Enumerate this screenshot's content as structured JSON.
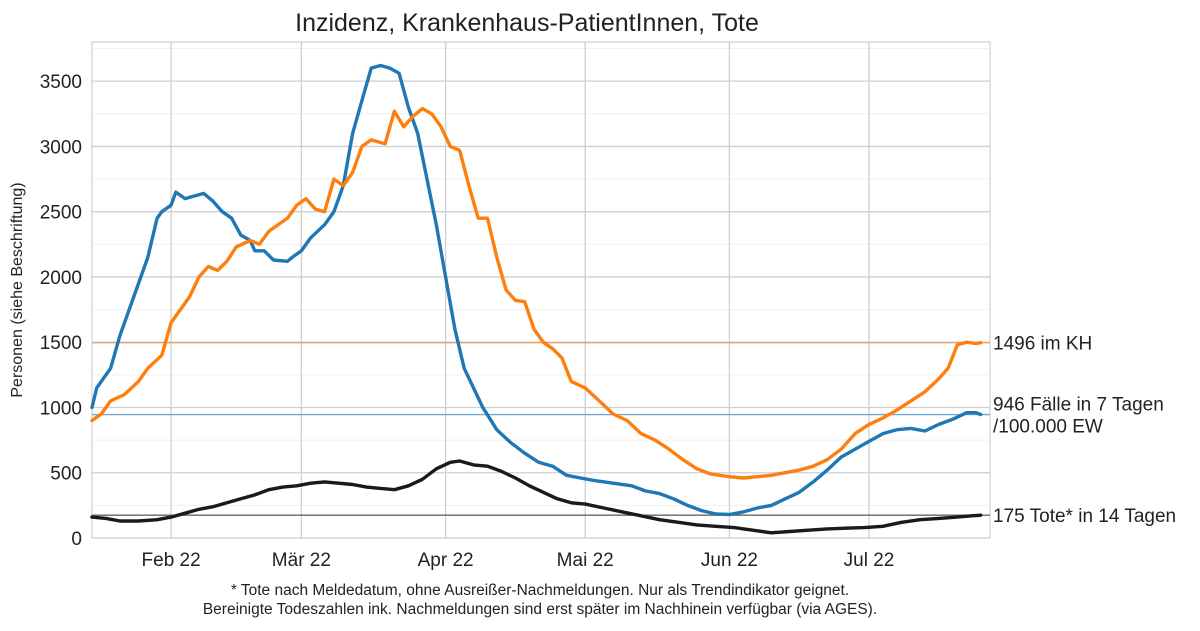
{
  "chart_data": {
    "type": "line",
    "title": "Inzidenz, Krankenhaus-PatientInnen, Tote",
    "ylabel": "Personen (siehe Beschriftung)",
    "xlabel": "",
    "ylim": [
      0,
      3800
    ],
    "xlim": [
      "2022-01-15",
      "2022-07-27"
    ],
    "y_ticks": [
      0,
      500,
      1000,
      1500,
      2000,
      2500,
      3000,
      3500
    ],
    "x_ticks": [
      {
        "date": "2022-02-01",
        "label": "Feb 22"
      },
      {
        "date": "2022-03-01",
        "label": "Mär 22"
      },
      {
        "date": "2022-04-01",
        "label": "Apr 22"
      },
      {
        "date": "2022-05-01",
        "label": "Mai 22"
      },
      {
        "date": "2022-06-01",
        "label": "Jun 22"
      },
      {
        "date": "2022-07-01",
        "label": "Jul 22"
      }
    ],
    "grid": true,
    "reference_lines": [
      {
        "value": 1496,
        "color": "#f0a060",
        "label": "1496 im KH"
      },
      {
        "value": 946,
        "color": "#6fa8d6",
        "label": "946 Fälle in 7 Tagen\n/100.000 EW"
      },
      {
        "value": 175,
        "color": "#666666",
        "label": "175 Tote* in 14 Tagen"
      }
    ],
    "series": [
      {
        "color": "#1f77b4",
        "points": [
          [
            "2022-01-15",
            1000
          ],
          [
            "2022-01-16",
            1150
          ],
          [
            "2022-01-18",
            1250
          ],
          [
            "2022-01-19",
            1300
          ],
          [
            "2022-01-21",
            1550
          ],
          [
            "2022-01-23",
            1750
          ],
          [
            "2022-01-25",
            1950
          ],
          [
            "2022-01-27",
            2150
          ],
          [
            "2022-01-29",
            2450
          ],
          [
            "2022-01-30",
            2500
          ],
          [
            "2022-02-01",
            2550
          ],
          [
            "2022-02-02",
            2650
          ],
          [
            "2022-02-04",
            2600
          ],
          [
            "2022-02-06",
            2620
          ],
          [
            "2022-02-08",
            2640
          ],
          [
            "2022-02-10",
            2580
          ],
          [
            "2022-02-12",
            2500
          ],
          [
            "2022-02-14",
            2450
          ],
          [
            "2022-02-16",
            2320
          ],
          [
            "2022-02-18",
            2280
          ],
          [
            "2022-02-19",
            2200
          ],
          [
            "2022-02-21",
            2200
          ],
          [
            "2022-02-23",
            2130
          ],
          [
            "2022-02-26",
            2120
          ],
          [
            "2022-02-27",
            2150
          ],
          [
            "2022-03-01",
            2200
          ],
          [
            "2022-03-03",
            2300
          ],
          [
            "2022-03-06",
            2400
          ],
          [
            "2022-03-08",
            2500
          ],
          [
            "2022-03-10",
            2700
          ],
          [
            "2022-03-12",
            3100
          ],
          [
            "2022-03-14",
            3350
          ],
          [
            "2022-03-16",
            3600
          ],
          [
            "2022-03-18",
            3620
          ],
          [
            "2022-03-20",
            3600
          ],
          [
            "2022-03-22",
            3560
          ],
          [
            "2022-03-24",
            3300
          ],
          [
            "2022-03-26",
            3100
          ],
          [
            "2022-03-28",
            2750
          ],
          [
            "2022-03-30",
            2400
          ],
          [
            "2022-04-01",
            2000
          ],
          [
            "2022-04-03",
            1600
          ],
          [
            "2022-04-05",
            1300
          ],
          [
            "2022-04-07",
            1150
          ],
          [
            "2022-04-09",
            1000
          ],
          [
            "2022-04-12",
            830
          ],
          [
            "2022-04-15",
            730
          ],
          [
            "2022-04-18",
            650
          ],
          [
            "2022-04-21",
            580
          ],
          [
            "2022-04-24",
            550
          ],
          [
            "2022-04-27",
            480
          ],
          [
            "2022-04-30",
            460
          ],
          [
            "2022-05-03",
            440
          ],
          [
            "2022-05-07",
            420
          ],
          [
            "2022-05-11",
            400
          ],
          [
            "2022-05-14",
            360
          ],
          [
            "2022-05-17",
            340
          ],
          [
            "2022-05-20",
            300
          ],
          [
            "2022-05-23",
            250
          ],
          [
            "2022-05-26",
            210
          ],
          [
            "2022-05-29",
            185
          ],
          [
            "2022-06-01",
            180
          ],
          [
            "2022-06-04",
            200
          ],
          [
            "2022-06-07",
            230
          ],
          [
            "2022-06-10",
            250
          ],
          [
            "2022-06-13",
            300
          ],
          [
            "2022-06-16",
            350
          ],
          [
            "2022-06-19",
            430
          ],
          [
            "2022-06-22",
            520
          ],
          [
            "2022-06-25",
            620
          ],
          [
            "2022-06-28",
            680
          ],
          [
            "2022-07-01",
            740
          ],
          [
            "2022-07-04",
            800
          ],
          [
            "2022-07-07",
            830
          ],
          [
            "2022-07-10",
            840
          ],
          [
            "2022-07-13",
            820
          ],
          [
            "2022-07-16",
            870
          ],
          [
            "2022-07-19",
            910
          ],
          [
            "2022-07-22",
            960
          ],
          [
            "2022-07-24",
            960
          ],
          [
            "2022-07-25",
            946
          ]
        ]
      },
      {
        "color": "#ff7f0e",
        "points": [
          [
            "2022-01-15",
            900
          ],
          [
            "2022-01-17",
            950
          ],
          [
            "2022-01-19",
            1050
          ],
          [
            "2022-01-22",
            1100
          ],
          [
            "2022-01-25",
            1200
          ],
          [
            "2022-01-27",
            1300
          ],
          [
            "2022-01-30",
            1400
          ],
          [
            "2022-02-01",
            1650
          ],
          [
            "2022-02-03",
            1750
          ],
          [
            "2022-02-05",
            1850
          ],
          [
            "2022-02-07",
            2000
          ],
          [
            "2022-02-09",
            2080
          ],
          [
            "2022-02-11",
            2050
          ],
          [
            "2022-02-13",
            2120
          ],
          [
            "2022-02-15",
            2230
          ],
          [
            "2022-02-18",
            2280
          ],
          [
            "2022-02-20",
            2250
          ],
          [
            "2022-02-22",
            2350
          ],
          [
            "2022-02-24",
            2400
          ],
          [
            "2022-02-26",
            2450
          ],
          [
            "2022-02-28",
            2550
          ],
          [
            "2022-03-02",
            2600
          ],
          [
            "2022-03-04",
            2520
          ],
          [
            "2022-03-06",
            2500
          ],
          [
            "2022-03-08",
            2750
          ],
          [
            "2022-03-10",
            2700
          ],
          [
            "2022-03-12",
            2800
          ],
          [
            "2022-03-14",
            3000
          ],
          [
            "2022-03-16",
            3050
          ],
          [
            "2022-03-19",
            3020
          ],
          [
            "2022-03-21",
            3270
          ],
          [
            "2022-03-23",
            3150
          ],
          [
            "2022-03-25",
            3230
          ],
          [
            "2022-03-27",
            3290
          ],
          [
            "2022-03-29",
            3250
          ],
          [
            "2022-03-31",
            3150
          ],
          [
            "2022-04-02",
            3000
          ],
          [
            "2022-04-04",
            2970
          ],
          [
            "2022-04-06",
            2700
          ],
          [
            "2022-04-08",
            2450
          ],
          [
            "2022-04-10",
            2450
          ],
          [
            "2022-04-12",
            2150
          ],
          [
            "2022-04-14",
            1900
          ],
          [
            "2022-04-16",
            1820
          ],
          [
            "2022-04-18",
            1810
          ],
          [
            "2022-04-20",
            1600
          ],
          [
            "2022-04-22",
            1500
          ],
          [
            "2022-04-24",
            1450
          ],
          [
            "2022-04-26",
            1380
          ],
          [
            "2022-04-28",
            1200
          ],
          [
            "2022-05-01",
            1150
          ],
          [
            "2022-05-04",
            1050
          ],
          [
            "2022-05-07",
            950
          ],
          [
            "2022-05-10",
            900
          ],
          [
            "2022-05-13",
            800
          ],
          [
            "2022-05-16",
            750
          ],
          [
            "2022-05-19",
            680
          ],
          [
            "2022-05-22",
            600
          ],
          [
            "2022-05-25",
            530
          ],
          [
            "2022-05-28",
            490
          ],
          [
            "2022-06-01",
            470
          ],
          [
            "2022-06-04",
            460
          ],
          [
            "2022-06-07",
            470
          ],
          [
            "2022-06-10",
            480
          ],
          [
            "2022-06-13",
            500
          ],
          [
            "2022-06-16",
            520
          ],
          [
            "2022-06-19",
            550
          ],
          [
            "2022-06-22",
            600
          ],
          [
            "2022-06-25",
            680
          ],
          [
            "2022-06-28",
            800
          ],
          [
            "2022-07-01",
            870
          ],
          [
            "2022-07-04",
            920
          ],
          [
            "2022-07-07",
            980
          ],
          [
            "2022-07-10",
            1050
          ],
          [
            "2022-07-13",
            1120
          ],
          [
            "2022-07-16",
            1220
          ],
          [
            "2022-07-18",
            1300
          ],
          [
            "2022-07-20",
            1480
          ],
          [
            "2022-07-22",
            1500
          ],
          [
            "2022-07-24",
            1490
          ],
          [
            "2022-07-25",
            1496
          ]
        ]
      },
      {
        "color": "#1a1a1a",
        "points": [
          [
            "2022-01-15",
            160
          ],
          [
            "2022-01-18",
            150
          ],
          [
            "2022-01-21",
            130
          ],
          [
            "2022-01-25",
            130
          ],
          [
            "2022-01-29",
            140
          ],
          [
            "2022-02-01",
            160
          ],
          [
            "2022-02-04",
            190
          ],
          [
            "2022-02-07",
            220
          ],
          [
            "2022-02-10",
            240
          ],
          [
            "2022-02-13",
            270
          ],
          [
            "2022-02-16",
            300
          ],
          [
            "2022-02-19",
            330
          ],
          [
            "2022-02-22",
            370
          ],
          [
            "2022-02-25",
            390
          ],
          [
            "2022-02-28",
            400
          ],
          [
            "2022-03-03",
            420
          ],
          [
            "2022-03-06",
            430
          ],
          [
            "2022-03-09",
            420
          ],
          [
            "2022-03-12",
            410
          ],
          [
            "2022-03-15",
            390
          ],
          [
            "2022-03-18",
            380
          ],
          [
            "2022-03-21",
            370
          ],
          [
            "2022-03-24",
            400
          ],
          [
            "2022-03-27",
            450
          ],
          [
            "2022-03-30",
            530
          ],
          [
            "2022-04-02",
            580
          ],
          [
            "2022-04-04",
            590
          ],
          [
            "2022-04-07",
            560
          ],
          [
            "2022-04-10",
            550
          ],
          [
            "2022-04-13",
            510
          ],
          [
            "2022-04-16",
            460
          ],
          [
            "2022-04-19",
            400
          ],
          [
            "2022-04-22",
            350
          ],
          [
            "2022-04-25",
            300
          ],
          [
            "2022-04-28",
            270
          ],
          [
            "2022-05-01",
            260
          ],
          [
            "2022-05-05",
            230
          ],
          [
            "2022-05-09",
            200
          ],
          [
            "2022-05-13",
            170
          ],
          [
            "2022-05-17",
            140
          ],
          [
            "2022-05-21",
            120
          ],
          [
            "2022-05-25",
            100
          ],
          [
            "2022-05-29",
            90
          ],
          [
            "2022-06-02",
            80
          ],
          [
            "2022-06-06",
            60
          ],
          [
            "2022-06-10",
            40
          ],
          [
            "2022-06-14",
            50
          ],
          [
            "2022-06-18",
            60
          ],
          [
            "2022-06-22",
            70
          ],
          [
            "2022-06-26",
            75
          ],
          [
            "2022-06-30",
            80
          ],
          [
            "2022-07-04",
            90
          ],
          [
            "2022-07-08",
            120
          ],
          [
            "2022-07-12",
            140
          ],
          [
            "2022-07-16",
            150
          ],
          [
            "2022-07-20",
            160
          ],
          [
            "2022-07-23",
            170
          ],
          [
            "2022-07-25",
            175
          ]
        ]
      }
    ]
  },
  "footnote": {
    "line1": "* Tote nach Meldedatum, ohne Ausreißer-Nachmeldungen. Nur als Trendindikator geignet.",
    "line2": "Bereinigte Todeszahlen ink. Nachmeldungen sind erst später im Nachhinein verfügbar (via AGES)."
  }
}
